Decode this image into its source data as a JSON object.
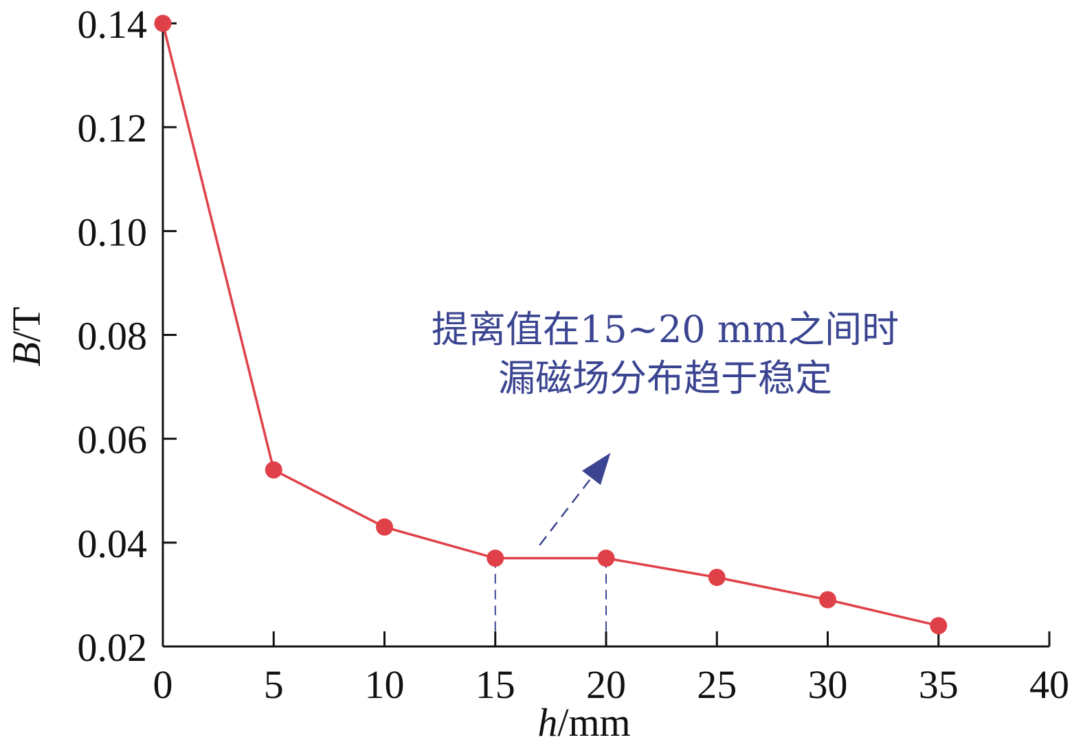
{
  "chart_data": {
    "type": "line",
    "x": [
      0,
      5,
      10,
      15,
      20,
      25,
      30,
      35
    ],
    "y": [
      0.14,
      0.054,
      0.043,
      0.037,
      0.037,
      0.0333,
      0.029,
      0.024
    ],
    "xlabel": {
      "var": "h",
      "unit": "/mm"
    },
    "ylabel": {
      "var": "B",
      "unit": "/T"
    },
    "xlim": [
      0,
      40
    ],
    "ylim": [
      0.02,
      0.14
    ],
    "xticks": [
      0,
      5,
      10,
      15,
      20,
      25,
      30,
      35,
      40
    ],
    "xtick_labels": [
      "0",
      "5",
      "10",
      "15",
      "20",
      "25",
      "30",
      "35",
      "40"
    ],
    "yticks": [
      0.02,
      0.04,
      0.06,
      0.08,
      0.1,
      0.12,
      0.14
    ],
    "ytick_labels": [
      "0.02",
      "0.04",
      "0.06",
      "0.08",
      "0.10",
      "0.12",
      "0.14"
    ],
    "grid": false,
    "series_color": "#e04048",
    "annotation": {
      "lines": [
        "提离值在15~20 mm之间时",
        "漏磁场分布趋于稳定"
      ],
      "color": "#3a4490",
      "arrow_from": [
        17,
        0.0395
      ],
      "arrow_to": [
        20.2,
        0.0573
      ]
    },
    "reference_lines_x": [
      15,
      20
    ],
    "reference_color": "#3a4490"
  }
}
